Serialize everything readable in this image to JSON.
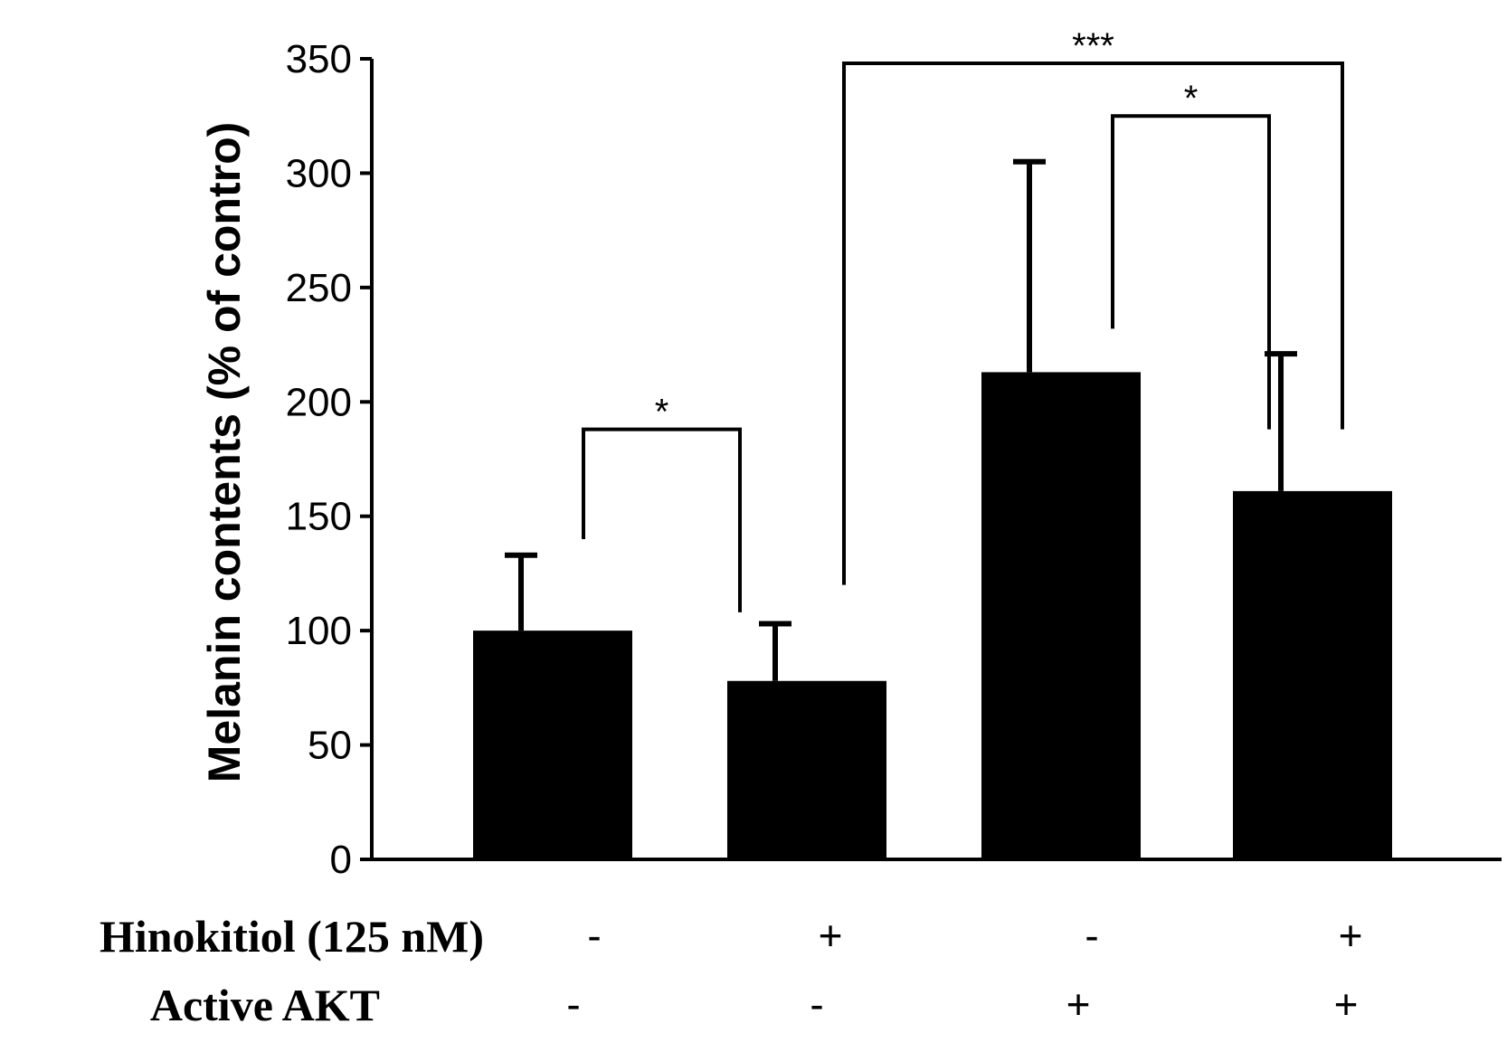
{
  "chart_data": {
    "type": "bar",
    "title": "",
    "xlabel": "",
    "ylabel": "Melanin contents (% of contro)",
    "ylim": [
      0,
      350
    ],
    "yticks": [
      0,
      50,
      100,
      150,
      200,
      250,
      300,
      350
    ],
    "grid": false,
    "bar_color": "#000000",
    "values": [
      100,
      78,
      213,
      161
    ],
    "errors": [
      33,
      25,
      92,
      60
    ],
    "conditions": [
      {
        "label": "Hinokitiol (125 nM)",
        "signs": [
          "-",
          "+",
          "-",
          "+"
        ]
      },
      {
        "label": "Active AKT",
        "signs": [
          "-",
          "-",
          "+",
          "+"
        ]
      }
    ],
    "significance": [
      {
        "from": 0,
        "to": 1,
        "level": 188,
        "label": "*"
      },
      {
        "from": 1,
        "to": 3,
        "level": 348,
        "label": "***"
      },
      {
        "from": 2,
        "to": 3,
        "level": 325,
        "label": "*"
      }
    ]
  }
}
